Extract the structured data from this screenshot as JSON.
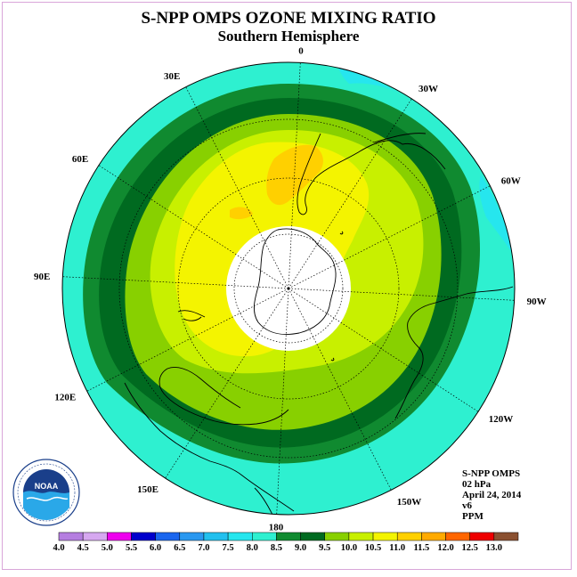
{
  "title": "S-NPP OMPS OZONE MIXING RATIO",
  "subtitle": "Southern Hemisphere",
  "longitude_labels": [
    {
      "label": "90W",
      "lon": -90
    },
    {
      "label": "60W",
      "lon": -60
    },
    {
      "label": "30W",
      "lon": -30
    },
    {
      "label": "0",
      "lon": 0
    },
    {
      "label": "30E",
      "lon": 30
    },
    {
      "label": "60E",
      "lon": 60
    },
    {
      "label": "90E",
      "lon": 90
    },
    {
      "label": "120E",
      "lon": 120
    },
    {
      "label": "150E",
      "lon": 150
    },
    {
      "label": "180",
      "lon": 180
    },
    {
      "label": "150W",
      "lon": -150
    },
    {
      "label": "120W",
      "lon": -120
    }
  ],
  "info": {
    "instrument": "S-NPP OMPS",
    "level": "02 hPa",
    "date": "April 24, 2014",
    "version": "v6",
    "units": "PPM"
  },
  "logo_text": "NOAA",
  "colorbar": {
    "ticks": [
      "4.0",
      "4.5",
      "5.0",
      "5.5",
      "6.0",
      "6.5",
      "7.0",
      "7.5",
      "8.0",
      "8.5",
      "9.0",
      "9.5",
      "10.0",
      "10.5",
      "11.0",
      "11.5",
      "12.0",
      "12.5",
      "13.0"
    ],
    "colors": [
      "#b57ee0",
      "#d6a8f0",
      "#ee00ee",
      "#0000cc",
      "#1a66ee",
      "#2a98f0",
      "#22c0ee",
      "#26e6ee",
      "#2ef0d0",
      "#108a30",
      "#006a20",
      "#88d000",
      "#c8f000",
      "#f4f400",
      "#ffd000",
      "#ffaa00",
      "#ff6600",
      "#ee0000",
      "#8a5030"
    ]
  },
  "map": {
    "projection": "south-polar-stereographic",
    "missing_data_region": "polar night (white disk)",
    "contour_bands": [
      {
        "range": "7.5-8.0",
        "color": "#26e6ee"
      },
      {
        "range": "8.0-8.5",
        "color": "#2ef0d0"
      },
      {
        "range": "8.5-9.0",
        "color": "#108a30"
      },
      {
        "range": "9.0-9.5",
        "color": "#006a20"
      },
      {
        "range": "9.5-10.0",
        "color": "#88d000"
      },
      {
        "range": "10.0-10.5",
        "color": "#c8f000"
      },
      {
        "range": "10.5-11.0",
        "color": "#f4f400"
      },
      {
        "range": "11.0-11.5",
        "color": "#ffd000"
      }
    ]
  }
}
